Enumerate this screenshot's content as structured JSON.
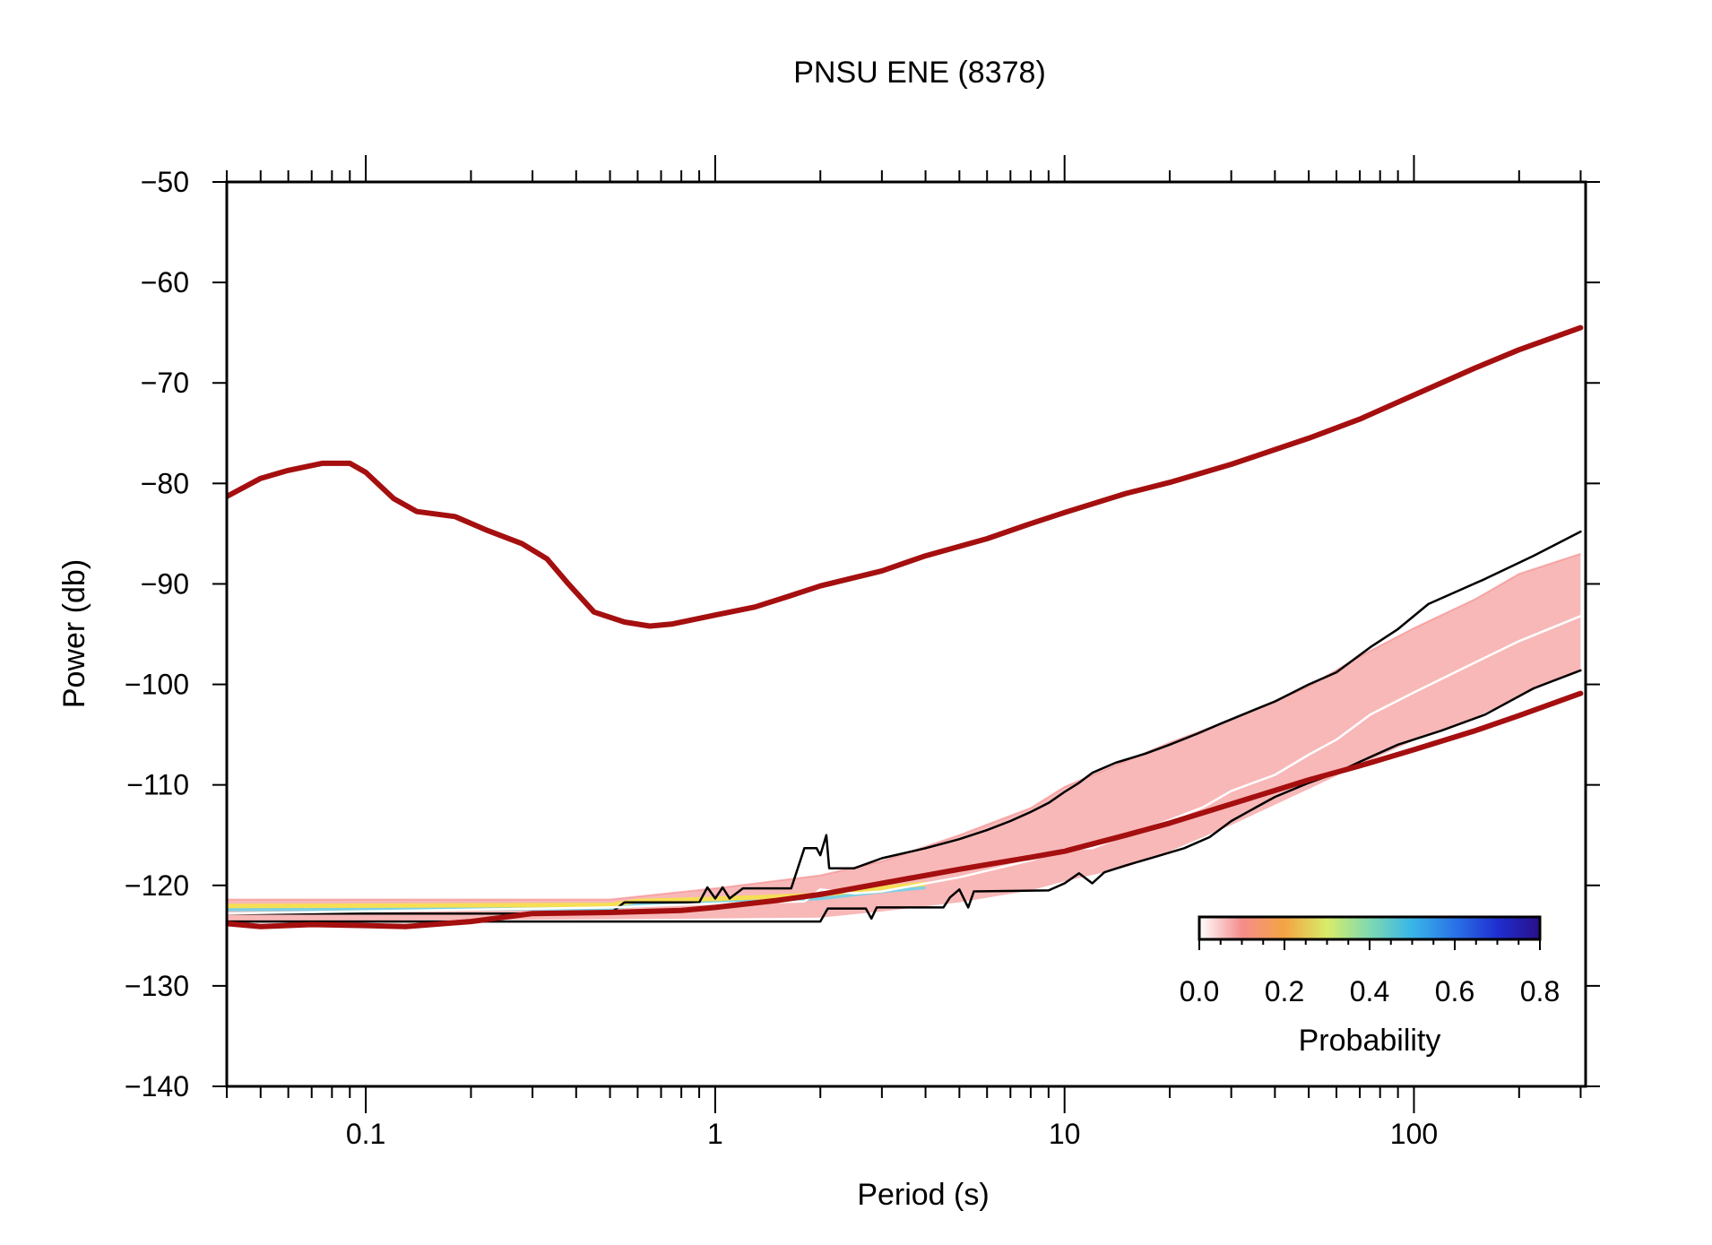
{
  "chart_data": {
    "type": "line",
    "title": "PNSU ENE (8378)",
    "xlabel": "Period (s)",
    "ylabel": "Power (db)",
    "x_scale": "log",
    "xlim": [
      0.04,
      310
    ],
    "ylim": [
      -140,
      -50
    ],
    "x_tick_values": [
      0.1,
      1,
      10,
      100
    ],
    "x_tick_labels": [
      "0.1",
      "1",
      "10",
      "100"
    ],
    "y_tick_values": [
      -50,
      -60,
      -70,
      -80,
      -90,
      -100,
      -110,
      -120,
      -130,
      -140
    ],
    "y_tick_labels": [
      "−50",
      "−60",
      "−70",
      "−80",
      "−90",
      "−100",
      "−110",
      "−120",
      "−130",
      "−140"
    ],
    "grid": false,
    "series": [
      {
        "role": "new-high-noise-model",
        "color": "#a50f0f",
        "points": [
          [
            0.04,
            -81.3
          ],
          [
            0.05,
            -79.5
          ],
          [
            0.06,
            -78.7
          ],
          [
            0.075,
            -78.0
          ],
          [
            0.09,
            -78.0
          ],
          [
            0.1,
            -78.9
          ],
          [
            0.12,
            -81.5
          ],
          [
            0.14,
            -82.8
          ],
          [
            0.18,
            -83.3
          ],
          [
            0.22,
            -84.6
          ],
          [
            0.28,
            -86.0
          ],
          [
            0.33,
            -87.5
          ],
          [
            0.38,
            -90.0
          ],
          [
            0.45,
            -92.8
          ],
          [
            0.55,
            -93.8
          ],
          [
            0.65,
            -94.2
          ],
          [
            0.75,
            -94.0
          ],
          [
            1.0,
            -93.1
          ],
          [
            1.3,
            -92.3
          ],
          [
            1.6,
            -91.3
          ],
          [
            2.0,
            -90.2
          ],
          [
            3.0,
            -88.7
          ],
          [
            4.0,
            -87.2
          ],
          [
            6.0,
            -85.5
          ],
          [
            8.0,
            -84.0
          ],
          [
            10.0,
            -82.9
          ],
          [
            15.0,
            -81.0
          ],
          [
            20.0,
            -79.9
          ],
          [
            30.0,
            -78.1
          ],
          [
            50.0,
            -75.5
          ],
          [
            70.0,
            -73.6
          ],
          [
            100.0,
            -71.2
          ],
          [
            150.0,
            -68.5
          ],
          [
            200.0,
            -66.7
          ],
          [
            300.0,
            -64.5
          ]
        ]
      },
      {
        "role": "new-low-noise-model",
        "color": "#a50f0f",
        "points": [
          [
            0.04,
            -123.8
          ],
          [
            0.05,
            -124.1
          ],
          [
            0.07,
            -123.9
          ],
          [
            0.1,
            -124.0
          ],
          [
            0.13,
            -124.1
          ],
          [
            0.2,
            -123.6
          ],
          [
            0.3,
            -122.8
          ],
          [
            0.5,
            -122.7
          ],
          [
            0.8,
            -122.5
          ],
          [
            1.0,
            -122.2
          ],
          [
            1.5,
            -121.5
          ],
          [
            2.0,
            -120.9
          ],
          [
            3.0,
            -119.8
          ],
          [
            5.0,
            -118.4
          ],
          [
            8.0,
            -117.2
          ],
          [
            10.0,
            -116.6
          ],
          [
            15.0,
            -115.0
          ],
          [
            20.0,
            -113.8
          ],
          [
            30.0,
            -111.9
          ],
          [
            50.0,
            -109.5
          ],
          [
            70.0,
            -108.1
          ],
          [
            100.0,
            -106.5
          ],
          [
            150.0,
            -104.6
          ],
          [
            200.0,
            -103.1
          ],
          [
            300.0,
            -100.9
          ]
        ]
      },
      {
        "role": "max-envelope",
        "color": "#000000",
        "points": [
          [
            0.04,
            -122.8
          ],
          [
            0.5,
            -122.8
          ],
          [
            0.55,
            -121.7
          ],
          [
            0.9,
            -121.7
          ],
          [
            0.95,
            -120.2
          ],
          [
            1.0,
            -121.3
          ],
          [
            1.05,
            -120.2
          ],
          [
            1.1,
            -121.3
          ],
          [
            1.2,
            -120.3
          ],
          [
            1.65,
            -120.3
          ],
          [
            1.8,
            -116.3
          ],
          [
            1.95,
            -116.3
          ],
          [
            2.0,
            -117.0
          ],
          [
            2.08,
            -115.0
          ],
          [
            2.12,
            -118.3
          ],
          [
            2.5,
            -118.3
          ],
          [
            3.0,
            -117.3
          ],
          [
            4.0,
            -116.3
          ],
          [
            5.0,
            -115.4
          ],
          [
            6.0,
            -114.5
          ],
          [
            7.0,
            -113.6
          ],
          [
            8.0,
            -112.7
          ],
          [
            9.0,
            -111.8
          ],
          [
            10.0,
            -110.7
          ],
          [
            11.0,
            -109.8
          ],
          [
            12.0,
            -108.8
          ],
          [
            14.0,
            -107.8
          ],
          [
            17.0,
            -106.9
          ],
          [
            20.0,
            -106.0
          ],
          [
            24.0,
            -104.9
          ],
          [
            28.0,
            -103.9
          ],
          [
            34.0,
            -102.7
          ],
          [
            40.0,
            -101.7
          ],
          [
            50.0,
            -100.0
          ],
          [
            60.0,
            -98.8
          ],
          [
            75.0,
            -96.3
          ],
          [
            90.0,
            -94.5
          ],
          [
            110.0,
            -92.0
          ],
          [
            160.0,
            -89.5
          ],
          [
            220.0,
            -87.2
          ],
          [
            300.0,
            -84.8
          ]
        ]
      },
      {
        "role": "min-envelope",
        "color": "#000000",
        "points": [
          [
            0.04,
            -123.6
          ],
          [
            2.0,
            -123.6
          ],
          [
            2.1,
            -122.3
          ],
          [
            2.7,
            -122.3
          ],
          [
            2.8,
            -123.3
          ],
          [
            2.9,
            -122.2
          ],
          [
            4.5,
            -122.2
          ],
          [
            4.7,
            -121.2
          ],
          [
            5.0,
            -120.4
          ],
          [
            5.3,
            -122.2
          ],
          [
            5.5,
            -120.6
          ],
          [
            9.0,
            -120.5
          ],
          [
            10.0,
            -119.8
          ],
          [
            11.0,
            -118.8
          ],
          [
            12.0,
            -119.8
          ],
          [
            13.0,
            -118.7
          ],
          [
            15.0,
            -118.0
          ],
          [
            18.0,
            -117.2
          ],
          [
            22.0,
            -116.3
          ],
          [
            26.0,
            -115.2
          ],
          [
            30.0,
            -113.6
          ],
          [
            35.0,
            -112.3
          ],
          [
            40.0,
            -111.2
          ],
          [
            50.0,
            -109.8
          ],
          [
            60.0,
            -108.8
          ],
          [
            70.0,
            -107.7
          ],
          [
            90.0,
            -106.0
          ],
          [
            120.0,
            -104.6
          ],
          [
            160.0,
            -103.0
          ],
          [
            220.0,
            -100.4
          ],
          [
            300.0,
            -98.6
          ]
        ]
      },
      {
        "role": "mode",
        "color": "#ffffff",
        "points": [
          [
            0.04,
            -122.8
          ],
          [
            0.5,
            -122.2
          ],
          [
            1.0,
            -121.8
          ],
          [
            1.8,
            -121.6
          ],
          [
            2.0,
            -120.4
          ],
          [
            2.5,
            -120.8
          ],
          [
            3.0,
            -120.6
          ],
          [
            5.0,
            -119.2
          ],
          [
            8.0,
            -117.5
          ],
          [
            10.0,
            -116.4
          ],
          [
            12.0,
            -116.3
          ],
          [
            14.0,
            -115.4
          ],
          [
            17.0,
            -114.4
          ],
          [
            20.0,
            -113.5
          ],
          [
            25.0,
            -112.2
          ],
          [
            30.0,
            -110.6
          ],
          [
            40.0,
            -109.0
          ],
          [
            50.0,
            -107.0
          ],
          [
            60.0,
            -105.5
          ],
          [
            75.0,
            -103.0
          ],
          [
            100.0,
            -100.8
          ],
          [
            150.0,
            -97.8
          ],
          [
            200.0,
            -95.7
          ],
          [
            300.0,
            -93.2
          ]
        ]
      }
    ],
    "probability_density": {
      "band_upper": [
        [
          0.04,
          -121.4
        ],
        [
          0.5,
          -121.4
        ],
        [
          1.0,
          -120.3
        ],
        [
          2.0,
          -119.0
        ],
        [
          3.0,
          -117.6
        ],
        [
          5.0,
          -115.0
        ],
        [
          8.0,
          -112.3
        ],
        [
          10.0,
          -110.2
        ],
        [
          15.0,
          -107.6
        ],
        [
          20.0,
          -105.8
        ],
        [
          30.0,
          -103.5
        ],
        [
          50.0,
          -100.2
        ],
        [
          70.0,
          -97.2
        ],
        [
          100.0,
          -94.4
        ],
        [
          150.0,
          -91.5
        ],
        [
          200.0,
          -89.0
        ],
        [
          300.0,
          -87.0
        ]
      ],
      "band_lower": [
        [
          0.04,
          -123.6
        ],
        [
          1.0,
          -123.3
        ],
        [
          2.0,
          -123.2
        ],
        [
          3.0,
          -122.6
        ],
        [
          5.0,
          -121.7
        ],
        [
          8.0,
          -120.5
        ],
        [
          10.0,
          -119.6
        ],
        [
          15.0,
          -118.2
        ],
        [
          20.0,
          -116.6
        ],
        [
          30.0,
          -114.0
        ],
        [
          50.0,
          -110.4
        ],
        [
          70.0,
          -108.0
        ],
        [
          100.0,
          -105.6
        ],
        [
          150.0,
          -103.3
        ],
        [
          200.0,
          -101.2
        ],
        [
          300.0,
          -98.5
        ]
      ],
      "high_probability_trace": [
        [
          0.04,
          -122.4
        ],
        [
          0.5,
          -122.3
        ],
        [
          0.6,
          -121.9
        ],
        [
          1.0,
          -121.7
        ],
        [
          2.0,
          -121.3
        ],
        [
          3.0,
          -120.6
        ],
        [
          4.0,
          -120.2
        ]
      ],
      "colors": {
        "band": "#f6a0a0",
        "band_core": "#f27a7a",
        "trace_yellow": "#f5e24a",
        "trace_cyan": "#6fd3e8"
      }
    },
    "colorbar": {
      "label": "Probability",
      "tick_values": [
        0.0,
        0.2,
        0.4,
        0.6,
        0.8
      ],
      "tick_labels": [
        "0.0",
        "0.2",
        "0.4",
        "0.6",
        "0.8"
      ],
      "range": [
        0,
        0.8
      ],
      "gradient": [
        {
          "v": 0.0,
          "color": "#ffffff"
        },
        {
          "v": 0.1,
          "color": "#f58c8c"
        },
        {
          "v": 0.2,
          "color": "#f4a443"
        },
        {
          "v": 0.3,
          "color": "#d8ec6a"
        },
        {
          "v": 0.4,
          "color": "#7fd9b0"
        },
        {
          "v": 0.5,
          "color": "#39b6e8"
        },
        {
          "v": 0.6,
          "color": "#2a73e6"
        },
        {
          "v": 0.7,
          "color": "#1f2fd0"
        },
        {
          "v": 0.8,
          "color": "#2a0f8a"
        }
      ]
    }
  }
}
